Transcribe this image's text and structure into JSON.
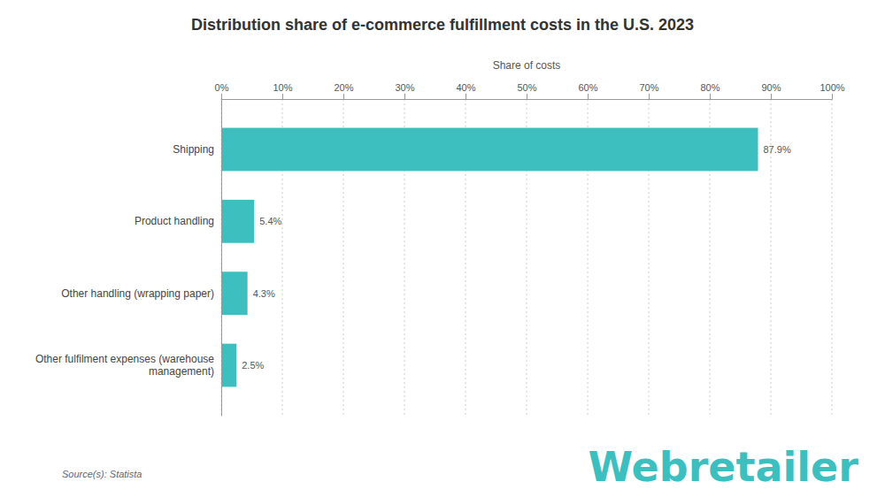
{
  "chart_data": {
    "type": "bar",
    "orientation": "horizontal",
    "title": "Distribution share of e-commerce fulfillment costs in the U.S. 2023",
    "x_label": "Share of costs",
    "categories": [
      "Shipping",
      "Product handling",
      "Other handling (wrapping paper)",
      "Other fulfilment expenses (warehouse\nmanagement)"
    ],
    "values": [
      87.9,
      5.4,
      4.3,
      2.5
    ],
    "value_labels": [
      "87.9%",
      "5.4%",
      "4.3%",
      "2.5%"
    ],
    "data_labels": true,
    "color": "#3DBFBF",
    "xlim": [
      0,
      100
    ],
    "xticks": [
      {
        "value": 0,
        "label": "0%"
      },
      {
        "value": 10,
        "label": "10%"
      },
      {
        "value": 20,
        "label": "20%"
      },
      {
        "value": 30,
        "label": "30%"
      },
      {
        "value": 40,
        "label": "40%"
      },
      {
        "value": 50,
        "label": "50%"
      },
      {
        "value": 60,
        "label": "60%"
      },
      {
        "value": 70,
        "label": "70%"
      },
      {
        "value": 80,
        "label": "80%"
      },
      {
        "value": 90,
        "label": "90%"
      },
      {
        "value": 100,
        "label": "100%"
      }
    ],
    "grid": true,
    "annotations": [
      "Source(s): Statista",
      "Webretailer"
    ]
  }
}
